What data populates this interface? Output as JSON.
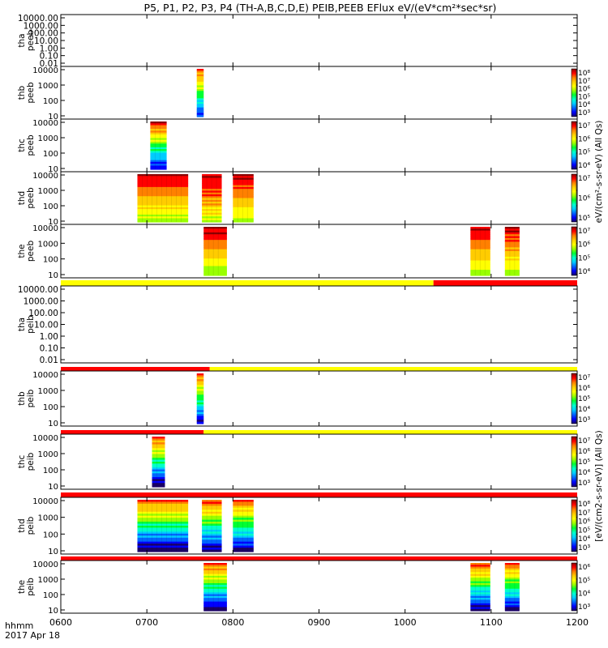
{
  "page": {
    "title": "P5, P1, P2, P3, P4 (TH-A,B,C,D,E) PEIB,PEEB EFlux eV/(eV*cm²*sec*sr)",
    "time_label": "hhmm",
    "date_label": "2017 Apr 18"
  },
  "colors": {
    "background": "#ffffff",
    "axes": "#000000",
    "flag_red": "#ff0000",
    "flag_yellow": "#ffff00",
    "colormap": [
      "#1a0066",
      "#0000ff",
      "#0066ff",
      "#00ccff",
      "#00ffcc",
      "#00ff33",
      "#99ff00",
      "#ffff00",
      "#ffcc00",
      "#ff8000",
      "#ff0000",
      "#8b0000"
    ]
  },
  "chart_data": {
    "type": "heatmap",
    "x": {
      "ticks": [
        "0600",
        "0700",
        "0800",
        "0900",
        "1000",
        "1100",
        "1200"
      ],
      "range": [
        6.0,
        12.0
      ]
    },
    "panels": [
      {
        "id": "tha-peeb",
        "label": [
          "tha",
          "peeb"
        ],
        "kind": "empty",
        "yticks": [
          "10000.00",
          "1000.00",
          "100.00",
          "10.00",
          "1.00",
          "0.10",
          "0.01"
        ]
      },
      {
        "id": "thb-peeb",
        "label": [
          "thb",
          "peeb"
        ],
        "kind": "spec",
        "yticks": [
          "10000",
          "1000",
          "100",
          "10"
        ],
        "bars": [
          [
            7.58,
            7.66,
            0.95,
            0.15,
            0.35
          ]
        ],
        "cbar": {
          "ticks": [
            "10⁸",
            "10⁷",
            "10⁶",
            "10⁵",
            "10⁴",
            "10³"
          ]
        }
      },
      {
        "id": "thc-peeb",
        "label": [
          "thc",
          "peeb"
        ],
        "kind": "spec",
        "yticks": [
          "10000",
          "1000",
          "100",
          "10"
        ],
        "bars": [
          [
            7.04,
            7.23,
            0.95,
            0.05,
            0.55
          ]
        ],
        "cbar": {
          "ticks": [
            "10⁷",
            "10⁶",
            "10⁵",
            "10⁴"
          ]
        }
      },
      {
        "id": "thd-peeb",
        "label": [
          "thd",
          "peeb"
        ],
        "kind": "spec",
        "yticks": [
          "10000",
          "1000",
          "100",
          "10"
        ],
        "bars": [
          [
            6.89,
            7.48,
            0.95,
            0.5,
            0.85
          ],
          [
            7.64,
            7.87,
            0.95,
            0.55,
            0.95
          ],
          [
            8.0,
            8.24,
            0.95,
            0.5,
            0.95
          ]
        ],
        "cbar": {
          "ticks": [
            "10⁷",
            "10⁶",
            "10⁵"
          ]
        }
      },
      {
        "id": "the-peeb",
        "label": [
          "the",
          "peeb"
        ],
        "kind": "spec",
        "yticks": [
          "10000",
          "1000",
          "100",
          "10"
        ],
        "bars": [
          [
            7.66,
            7.93,
            0.95,
            0.45,
            0.95
          ],
          [
            10.76,
            10.99,
            0.95,
            0.5,
            0.9
          ],
          [
            11.16,
            11.33,
            0.95,
            0.5,
            0.9
          ]
        ],
        "cbar": {
          "ticks": [
            "10⁷",
            "10⁶",
            "10⁵",
            "10⁴"
          ]
        }
      },
      {
        "id": "tha-peib",
        "label": [
          "tha",
          "peib"
        ],
        "kind": "empty",
        "yticks": [
          "10000.00",
          "1000.00",
          "100.00",
          "10.00",
          "1.00",
          "0.10",
          "0.01"
        ],
        "flag": [
          [
            "#ffff00",
            6.0,
            10.33
          ],
          [
            "#ff0000",
            10.33,
            12.0
          ]
        ]
      },
      {
        "id": "thb-peib",
        "label": [
          "thb",
          "peib"
        ],
        "kind": "spec",
        "yticks": [
          "10000",
          "1000",
          "100",
          "10"
        ],
        "bars": [
          [
            7.58,
            7.66,
            0.95,
            0.05,
            0.4
          ]
        ],
        "cbar": {
          "ticks": [
            "10⁷",
            "10⁶",
            "10⁵",
            "10⁴",
            "10³"
          ]
        },
        "flag": [
          [
            "#ff0000",
            6.0,
            7.73
          ],
          [
            "#ffff00",
            7.73,
            12.0
          ]
        ]
      },
      {
        "id": "thc-peib",
        "label": [
          "thc",
          "peib"
        ],
        "kind": "spec",
        "yticks": [
          "10000",
          "1000",
          "100",
          "10"
        ],
        "bars": [
          [
            7.06,
            7.21,
            0.95,
            0.0,
            0.4
          ]
        ],
        "cbar": {
          "ticks": [
            "10⁷",
            "10⁶",
            "10⁵",
            "10⁴",
            "10³"
          ]
        },
        "flag": [
          [
            "#ff0000",
            6.0,
            7.66
          ],
          [
            "#ffff00",
            7.66,
            12.0
          ]
        ]
      },
      {
        "id": "thd-peib",
        "label": [
          "thd",
          "peib"
        ],
        "kind": "spec",
        "yticks": [
          "10000",
          "1000",
          "100",
          "10"
        ],
        "bars": [
          [
            6.89,
            7.48,
            0.95,
            0.05,
            0.25
          ],
          [
            7.64,
            7.87,
            0.95,
            0.05,
            0.3
          ],
          [
            8.0,
            8.24,
            0.95,
            0.05,
            0.3
          ]
        ],
        "cbar": {
          "ticks": [
            "10⁸",
            "10⁷",
            "10⁶",
            "10⁵",
            "10⁴",
            "10³"
          ]
        },
        "flag": [
          [
            "#ff0000",
            6.0,
            12.0
          ]
        ]
      },
      {
        "id": "the-peib",
        "label": [
          "the",
          "peib"
        ],
        "kind": "spec",
        "yticks": [
          "10000",
          "1000",
          "100",
          "10"
        ],
        "bars": [
          [
            7.66,
            7.93,
            0.95,
            0.05,
            0.3
          ],
          [
            10.76,
            10.99,
            0.95,
            0.05,
            0.3
          ],
          [
            11.16,
            11.33,
            0.95,
            0.05,
            0.3
          ]
        ],
        "cbar": {
          "ticks": [
            "10⁶",
            "10⁵",
            "10⁴",
            "10³"
          ]
        },
        "flag": [
          [
            "#ff0000",
            6.0,
            12.0
          ]
        ]
      }
    ],
    "colorbar_labels": {
      "peeb": "eV/(cm²-s-sr-eV) (All Qs)",
      "peib": "[eV/(cm2-s-sr-eV)] (All Qs)"
    }
  }
}
